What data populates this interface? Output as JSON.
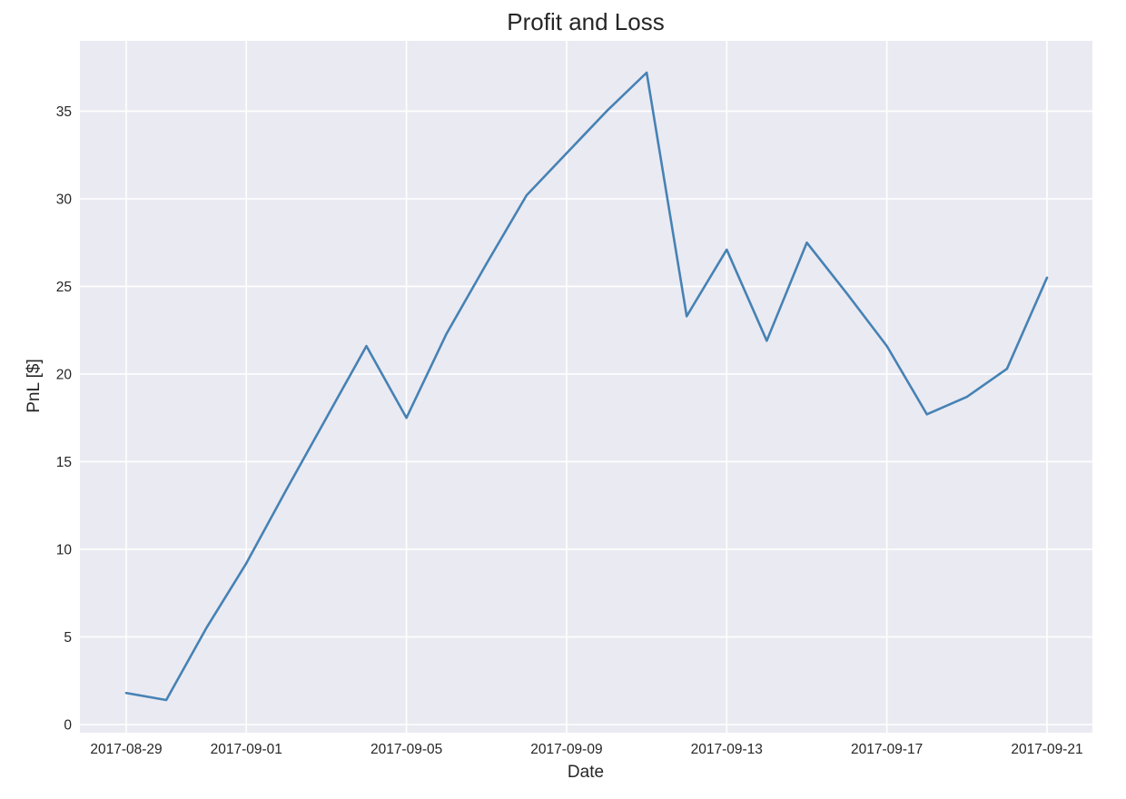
{
  "chart_data": {
    "type": "line",
    "title": "Profit and Loss",
    "xlabel": "Date",
    "ylabel": "PnL [$]",
    "x": [
      "2017-08-29",
      "2017-08-30",
      "2017-08-31",
      "2017-09-01",
      "2017-09-02",
      "2017-09-03",
      "2017-09-04",
      "2017-09-05",
      "2017-09-06",
      "2017-09-07",
      "2017-09-08",
      "2017-09-09",
      "2017-09-10",
      "2017-09-11",
      "2017-09-12",
      "2017-09-13",
      "2017-09-14",
      "2017-09-15",
      "2017-09-16",
      "2017-09-17",
      "2017-09-18",
      "2017-09-19",
      "2017-09-20",
      "2017-09-21"
    ],
    "series": [
      {
        "values": [
          1.8,
          1.4,
          5.5,
          9.2,
          13.4,
          17.5,
          21.6,
          17.5,
          22.3,
          26.3,
          30.2,
          32.6,
          35.0,
          37.2,
          23.3,
          27.1,
          21.9,
          27.5,
          24.6,
          21.6,
          17.7,
          18.7,
          20.3,
          25.5
        ]
      }
    ],
    "xlim": [
      "2017-08-29",
      "2017-09-21"
    ],
    "ylim": [
      0,
      37.2
    ],
    "x_ticks": [
      "2017-08-29",
      "2017-09-01",
      "2017-09-05",
      "2017-09-09",
      "2017-09-13",
      "2017-09-17",
      "2017-09-21"
    ],
    "y_ticks": [
      0,
      5,
      10,
      15,
      20,
      25,
      30,
      35
    ],
    "grid": true,
    "style": {
      "line_color": "#4682b4",
      "background": "#eaeaf2",
      "grid_color": "#ffffff"
    }
  }
}
